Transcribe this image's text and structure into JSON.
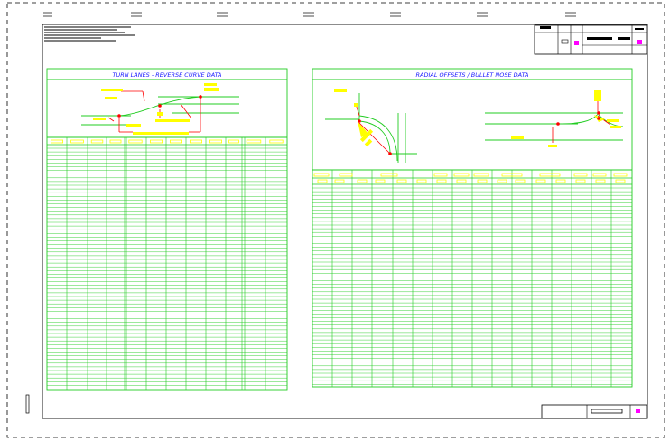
{
  "sheet": {
    "left_table": {
      "title": "TURN LANES - REVERSE CURVE DATA"
    },
    "right_table": {
      "title": "RADIAL OFFSETS / BULLET NOSE DATA"
    }
  },
  "colors": {
    "grid_line": "#22cc22",
    "title_text": "#1a1aff",
    "label_fill": "#ffff00",
    "marker": "#ff0000",
    "flag": "#ff00ff",
    "frame": "#000000"
  }
}
